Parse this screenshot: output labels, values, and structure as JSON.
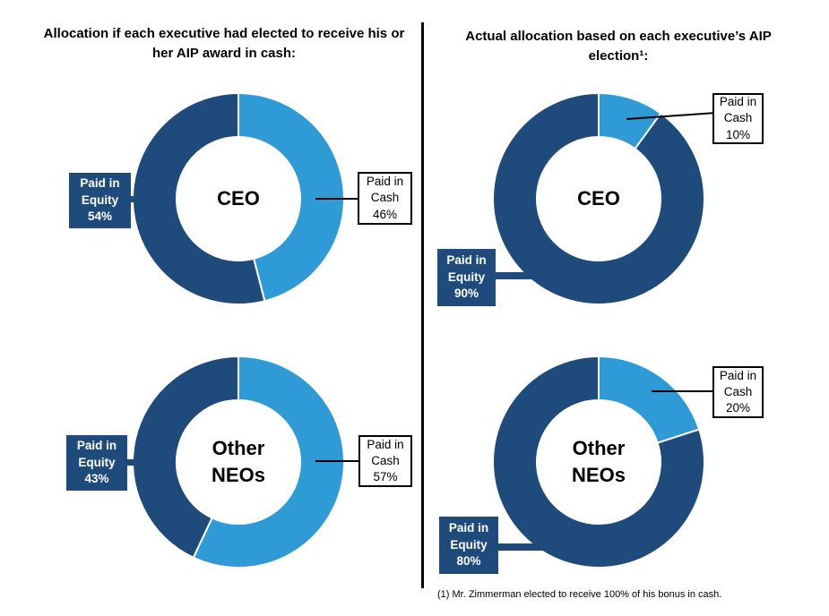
{
  "page": {
    "background": "#FFFFFF"
  },
  "palette": {
    "equity_navy": "#1F4B7C",
    "cash_blue": "#2E9BD6",
    "divider_black": "#000000",
    "box_border_black": "#000000",
    "box_text_white": "#FFFFFF"
  },
  "left_panel": {
    "title": "Allocation if each executive had elected to receive his or her AIP award in cash:"
  },
  "right_panel": {
    "title": "Actual allocation based on each executive’s AIP election¹:"
  },
  "footnote": "(1) Mr. Zimmerman elected to receive 100% of his bonus in cash.",
  "chart_data": [
    {
      "type": "pie",
      "subtype": "donut",
      "panel": "left",
      "panel_title": "Allocation if each executive had elected to receive his or her AIP award in cash:",
      "center_label": "CEO",
      "center_label_lines": [
        "CEO"
      ],
      "labels": [
        "Paid in Cash",
        "Paid in Equity"
      ],
      "values": [
        46,
        54
      ],
      "colors": [
        "#2E9BD6",
        "#1F4B7C"
      ],
      "start_angle_deg": 0,
      "direction": "clockwise",
      "annotations": {
        "cash": {
          "style": "white-box",
          "lines": [
            "Paid in",
            "Cash",
            "46%"
          ]
        },
        "equity": {
          "style": "navy-box",
          "lines": [
            "Paid in",
            "Equity",
            "54%"
          ]
        }
      }
    },
    {
      "type": "pie",
      "subtype": "donut",
      "panel": "left",
      "panel_title": "Allocation if each executive had elected to receive his or her AIP award in cash:",
      "center_label": "Other NEOs",
      "center_label_lines": [
        "Other",
        "NEOs"
      ],
      "labels": [
        "Paid in Cash",
        "Paid in Equity"
      ],
      "values": [
        57,
        43
      ],
      "colors": [
        "#2E9BD6",
        "#1F4B7C"
      ],
      "start_angle_deg": 0,
      "direction": "clockwise",
      "annotations": {
        "cash": {
          "style": "white-box",
          "lines": [
            "Paid in",
            "Cash",
            "57%"
          ]
        },
        "equity": {
          "style": "navy-box",
          "lines": [
            "Paid in",
            "Equity",
            "43%"
          ]
        }
      }
    },
    {
      "type": "pie",
      "subtype": "donut",
      "panel": "right",
      "panel_title": "Actual allocation based on each executive’s AIP election¹:",
      "center_label": "CEO",
      "center_label_lines": [
        "CEO"
      ],
      "labels": [
        "Paid in Cash",
        "Paid in Equity"
      ],
      "values": [
        10,
        90
      ],
      "colors": [
        "#2E9BD6",
        "#1F4B7C"
      ],
      "start_angle_deg": 0,
      "direction": "clockwise",
      "annotations": {
        "cash": {
          "style": "white-box",
          "lines": [
            "Paid in",
            "Cash",
            "10%"
          ]
        },
        "equity": {
          "style": "navy-box",
          "lines": [
            "Paid in",
            "Equity",
            "90%"
          ]
        }
      }
    },
    {
      "type": "pie",
      "subtype": "donut",
      "panel": "right",
      "panel_title": "Actual allocation based on each executive’s AIP election¹:",
      "center_label": "Other NEOs",
      "center_label_lines": [
        "Other",
        "NEOs"
      ],
      "labels": [
        "Paid in Cash",
        "Paid in Equity"
      ],
      "values": [
        20,
        80
      ],
      "colors": [
        "#2E9BD6",
        "#1F4B7C"
      ],
      "start_angle_deg": 0,
      "direction": "clockwise",
      "annotations": {
        "cash": {
          "style": "white-box",
          "lines": [
            "Paid in",
            "Cash",
            "20%"
          ]
        },
        "equity": {
          "style": "navy-box",
          "lines": [
            "Paid in",
            "Equity",
            "80%"
          ]
        }
      }
    }
  ]
}
